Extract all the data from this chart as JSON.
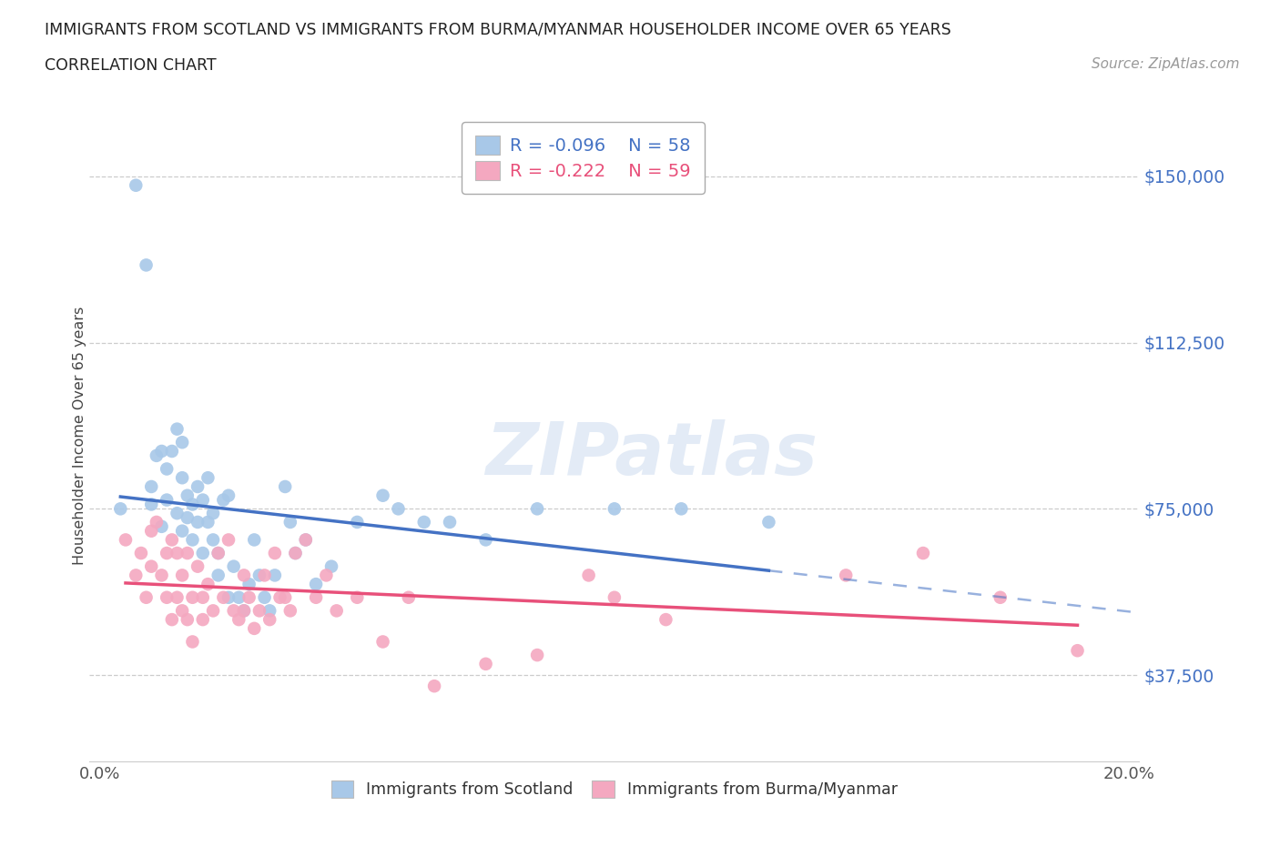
{
  "title_line1": "IMMIGRANTS FROM SCOTLAND VS IMMIGRANTS FROM BURMA/MYANMAR HOUSEHOLDER INCOME OVER 65 YEARS",
  "title_line2": "CORRELATION CHART",
  "source_text": "Source: ZipAtlas.com",
  "ylabel": "Householder Income Over 65 years",
  "xlim": [
    -0.002,
    0.202
  ],
  "ylim": [
    18000,
    165000
  ],
  "yticks": [
    37500,
    75000,
    112500,
    150000
  ],
  "ytick_labels": [
    "$37,500",
    "$75,000",
    "$112,500",
    "$150,000"
  ],
  "xtick_vals": [
    0.0,
    0.025,
    0.05,
    0.075,
    0.1,
    0.125,
    0.15,
    0.175,
    0.2
  ],
  "scotland_color": "#a8c8e8",
  "burma_color": "#f4a8c0",
  "scotland_line_color": "#4472c4",
  "burma_line_color": "#e8507a",
  "scotland_x": [
    0.004,
    0.007,
    0.009,
    0.01,
    0.01,
    0.011,
    0.012,
    0.012,
    0.013,
    0.013,
    0.014,
    0.015,
    0.015,
    0.016,
    0.016,
    0.016,
    0.017,
    0.017,
    0.018,
    0.018,
    0.019,
    0.019,
    0.02,
    0.02,
    0.021,
    0.021,
    0.022,
    0.022,
    0.023,
    0.023,
    0.024,
    0.025,
    0.025,
    0.026,
    0.027,
    0.028,
    0.029,
    0.03,
    0.031,
    0.032,
    0.033,
    0.034,
    0.036,
    0.037,
    0.038,
    0.04,
    0.042,
    0.045,
    0.05,
    0.055,
    0.058,
    0.063,
    0.068,
    0.075,
    0.085,
    0.1,
    0.113,
    0.13
  ],
  "scotland_y": [
    75000,
    148000,
    130000,
    80000,
    76000,
    87000,
    88000,
    71000,
    84000,
    77000,
    88000,
    93000,
    74000,
    82000,
    90000,
    70000,
    78000,
    73000,
    76000,
    68000,
    80000,
    72000,
    77000,
    65000,
    72000,
    82000,
    68000,
    74000,
    60000,
    65000,
    77000,
    78000,
    55000,
    62000,
    55000,
    52000,
    58000,
    68000,
    60000,
    55000,
    52000,
    60000,
    80000,
    72000,
    65000,
    68000,
    58000,
    62000,
    72000,
    78000,
    75000,
    72000,
    72000,
    68000,
    75000,
    75000,
    75000,
    72000
  ],
  "burma_x": [
    0.005,
    0.007,
    0.008,
    0.009,
    0.01,
    0.01,
    0.011,
    0.012,
    0.013,
    0.013,
    0.014,
    0.014,
    0.015,
    0.015,
    0.016,
    0.016,
    0.017,
    0.017,
    0.018,
    0.018,
    0.019,
    0.02,
    0.02,
    0.021,
    0.022,
    0.023,
    0.024,
    0.025,
    0.026,
    0.027,
    0.028,
    0.028,
    0.029,
    0.03,
    0.031,
    0.032,
    0.033,
    0.034,
    0.035,
    0.036,
    0.037,
    0.038,
    0.04,
    0.042,
    0.044,
    0.046,
    0.05,
    0.055,
    0.06,
    0.065,
    0.075,
    0.085,
    0.095,
    0.1,
    0.11,
    0.145,
    0.16,
    0.175,
    0.19
  ],
  "burma_y": [
    68000,
    60000,
    65000,
    55000,
    70000,
    62000,
    72000,
    60000,
    65000,
    55000,
    50000,
    68000,
    55000,
    65000,
    52000,
    60000,
    65000,
    50000,
    55000,
    45000,
    62000,
    55000,
    50000,
    58000,
    52000,
    65000,
    55000,
    68000,
    52000,
    50000,
    60000,
    52000,
    55000,
    48000,
    52000,
    60000,
    50000,
    65000,
    55000,
    55000,
    52000,
    65000,
    68000,
    55000,
    60000,
    52000,
    55000,
    45000,
    55000,
    35000,
    40000,
    42000,
    60000,
    55000,
    50000,
    60000,
    65000,
    55000,
    43000
  ]
}
